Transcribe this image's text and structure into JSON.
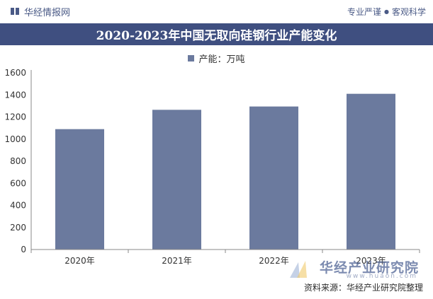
{
  "header": {
    "brand_name": "华经情报网",
    "brand_icon": "book-icon",
    "tagline_left": "专业严谨",
    "tagline_right": "客观科学"
  },
  "colors": {
    "title_band": "#3f4f80",
    "bar": "#6b7a9e",
    "brand_text": "#4a5a86"
  },
  "chart_data": {
    "type": "bar",
    "title": "2020-2023年中国无取向硅钢行业产能变化",
    "categories": [
      "2020年",
      "2021年",
      "2022年",
      "2023年"
    ],
    "series": [
      {
        "name": "产能：万吨",
        "values": [
          1090,
          1265,
          1295,
          1410
        ]
      }
    ],
    "ylim": [
      0,
      1600
    ],
    "yticks": [
      0,
      200,
      400,
      600,
      800,
      1000,
      1200,
      1400,
      1600
    ],
    "xlabel": "",
    "ylabel": "",
    "legend_position": "top-center",
    "grid": false
  },
  "footer": {
    "source": "资料来源：华经产业研究院整理",
    "watermark_name": "华经产业研究院",
    "watermark_url": "www.huaon.com"
  }
}
